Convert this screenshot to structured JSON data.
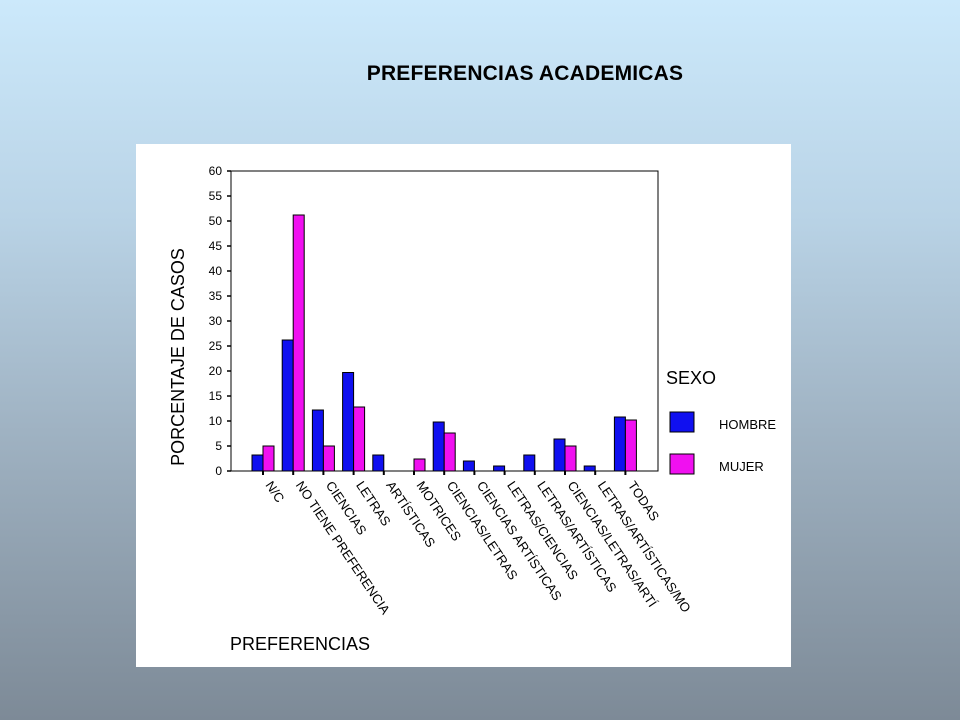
{
  "slide": {
    "title": "PREFERENCIAS ACADEMICAS"
  },
  "colors": {
    "hombre": "#1010f0",
    "mujer": "#f010f0",
    "axis": "#000000",
    "panel": "#ffffff"
  },
  "chart_data": {
    "type": "bar",
    "title": "",
    "xlabel": "PREFERENCIAS",
    "ylabel": "PORCENTAJE DE CASOS",
    "ylim": [
      0,
      60
    ],
    "yticks": [
      0,
      5,
      10,
      15,
      20,
      25,
      30,
      35,
      40,
      45,
      50,
      55,
      60
    ],
    "grid": false,
    "legend": {
      "title": "SEXO",
      "position": "right"
    },
    "categories": [
      "N/C",
      "NO TIENE PREFERENCIA",
      "CIENCIAS",
      "LETRAS",
      "ARTÍSTICAS",
      "MOTRICES",
      "CIENCIAS/LETRAS",
      "CIENCIAS ARTÍSTICAS",
      "LETRAS/CIENCIAS",
      "LETRAS/ARTÍSTICAS",
      "CIENCIAS/LETRAS/ARTÍ",
      "LETRAS/ARTÍSTICAS/MO",
      "TODAS"
    ],
    "series": [
      {
        "name": "HOMBRE",
        "values": [
          3.2,
          26.2,
          12.2,
          19.7,
          3.2,
          0,
          9.8,
          2.0,
          1.0,
          3.2,
          6.4,
          1.0,
          10.8
        ]
      },
      {
        "name": "MUJER",
        "values": [
          5.0,
          51.2,
          5.0,
          12.8,
          0,
          2.4,
          7.6,
          0,
          0,
          0,
          5.0,
          0,
          10.2
        ]
      }
    ]
  }
}
